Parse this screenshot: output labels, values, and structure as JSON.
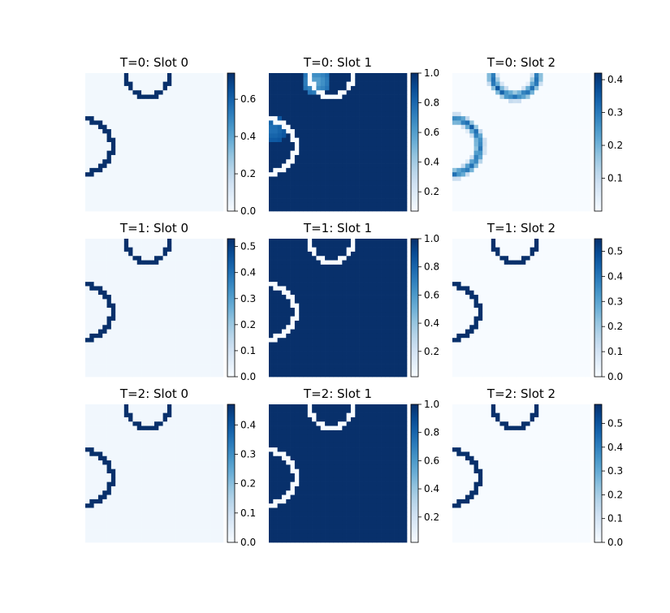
{
  "chart_data": [
    {
      "type": "heatmap",
      "title": "T=0: Slot 0",
      "colorbar": {
        "ticks": [
          "0.0",
          "0.2",
          "0.4",
          "0.6"
        ],
        "tick_values": [
          0,
          0.2,
          0.4,
          0.6
        ],
        "range": [
          0,
          0.74
        ]
      },
      "background": 0.02,
      "ring_value": 0.74,
      "pattern": "ring",
      "blobs": [
        {
          "cx": 11,
          "cy": 2,
          "r": 3.5,
          "v": 0.02
        }
      ],
      "colormap": "Blues"
    },
    {
      "type": "heatmap",
      "title": "T=0: Slot 1",
      "colorbar": {
        "ticks": [
          "0.2",
          "0.4",
          "0.6",
          "0.8",
          "1.0"
        ],
        "tick_values": [
          0.2,
          0.4,
          0.6,
          0.8,
          1.0
        ],
        "range": [
          0.07,
          1.0
        ]
      },
      "background": 1.0,
      "ring_value": 0.07,
      "pattern": "ring-inverse",
      "blobs": [
        {
          "cx": 11,
          "cy": 2,
          "r": 3.2,
          "v": 0.55
        },
        {
          "cx": 1,
          "cy": 13,
          "r": 3.2,
          "v": 0.75
        }
      ],
      "colormap": "Blues"
    },
    {
      "type": "heatmap",
      "title": "T=0: Slot 2",
      "colorbar": {
        "ticks": [
          "0.1",
          "0.2",
          "0.3",
          "0.4"
        ],
        "tick_values": [
          0.1,
          0.2,
          0.3,
          0.4
        ],
        "range": [
          0,
          0.42
        ]
      },
      "background": 0.0,
      "ring_value": 0.32,
      "pattern": "ring-soft",
      "blobs": [],
      "colormap": "Blues"
    },
    {
      "type": "heatmap",
      "title": "T=1: Slot 0",
      "colorbar": {
        "ticks": [
          "0.0",
          "0.1",
          "0.2",
          "0.3",
          "0.4",
          "0.5"
        ],
        "tick_values": [
          0,
          0.1,
          0.2,
          0.3,
          0.4,
          0.5
        ],
        "range": [
          0,
          0.53
        ]
      },
      "background": 0.015,
      "ring_value": 0.53,
      "pattern": "ring",
      "blobs": [],
      "colormap": "Blues"
    },
    {
      "type": "heatmap",
      "title": "T=1: Slot 1",
      "colorbar": {
        "ticks": [
          "0.2",
          "0.4",
          "0.6",
          "0.8",
          "1.0"
        ],
        "tick_values": [
          0.2,
          0.4,
          0.6,
          0.8,
          1.0
        ],
        "range": [
          0.02,
          1.0
        ]
      },
      "background": 1.0,
      "ring_value": 0.02,
      "pattern": "ring-inverse",
      "blobs": [],
      "colormap": "Blues"
    },
    {
      "type": "heatmap",
      "title": "T=1: Slot 2",
      "colorbar": {
        "ticks": [
          "0.0",
          "0.1",
          "0.2",
          "0.3",
          "0.4",
          "0.5"
        ],
        "tick_values": [
          0,
          0.1,
          0.2,
          0.3,
          0.4,
          0.5
        ],
        "range": [
          0,
          0.55
        ]
      },
      "background": 0.0,
      "ring_value": 0.55,
      "pattern": "ring",
      "blobs": [],
      "colormap": "Blues"
    },
    {
      "type": "heatmap",
      "title": "T=2: Slot 0",
      "colorbar": {
        "ticks": [
          "0.0",
          "0.1",
          "0.2",
          "0.3",
          "0.4"
        ],
        "tick_values": [
          0,
          0.1,
          0.2,
          0.3,
          0.4
        ],
        "range": [
          0,
          0.47
        ]
      },
      "background": 0.015,
      "ring_value": 0.47,
      "pattern": "ring",
      "blobs": [],
      "colormap": "Blues"
    },
    {
      "type": "heatmap",
      "title": "T=2: Slot 1",
      "colorbar": {
        "ticks": [
          "0.2",
          "0.4",
          "0.6",
          "0.8",
          "1.0"
        ],
        "tick_values": [
          0.2,
          0.4,
          0.6,
          0.8,
          1.0
        ],
        "range": [
          0.02,
          1.0
        ]
      },
      "background": 1.0,
      "ring_value": 0.02,
      "pattern": "ring-inverse",
      "blobs": [],
      "colormap": "Blues"
    },
    {
      "type": "heatmap",
      "title": "T=2: Slot 2",
      "colorbar": {
        "ticks": [
          "0.0",
          "0.1",
          "0.2",
          "0.3",
          "0.4",
          "0.5"
        ],
        "tick_values": [
          0,
          0.1,
          0.2,
          0.3,
          0.4,
          0.5
        ],
        "range": [
          0,
          0.58
        ]
      },
      "background": 0.0,
      "ring_value": 0.58,
      "pattern": "ring",
      "blobs": [],
      "colormap": "Blues"
    }
  ],
  "grid": {
    "rows": 32,
    "cols": 32,
    "circles": [
      {
        "cx": 14.5,
        "cy": 0,
        "r": 5.3
      },
      {
        "cx": 0,
        "cy": 17,
        "r": 6.3
      }
    ]
  }
}
